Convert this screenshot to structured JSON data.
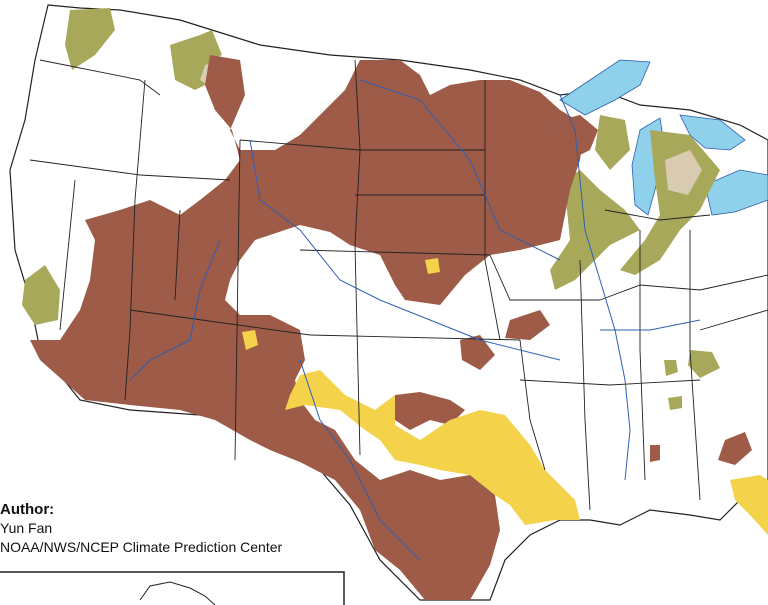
{
  "map": {
    "colors": {
      "background": "#ffffff",
      "brown": "#9d5b48",
      "olive": "#a8a85a",
      "tan": "#d8cbb0",
      "yellow": "#f4d24a",
      "water": "#8fd0ea",
      "borders": "#222222",
      "rivers": "#2e5fb3"
    }
  },
  "credit": {
    "heading": "Author:",
    "name": "Yun Fan",
    "org": "NOAA/NWS/NCEP Climate Prediction Center"
  }
}
